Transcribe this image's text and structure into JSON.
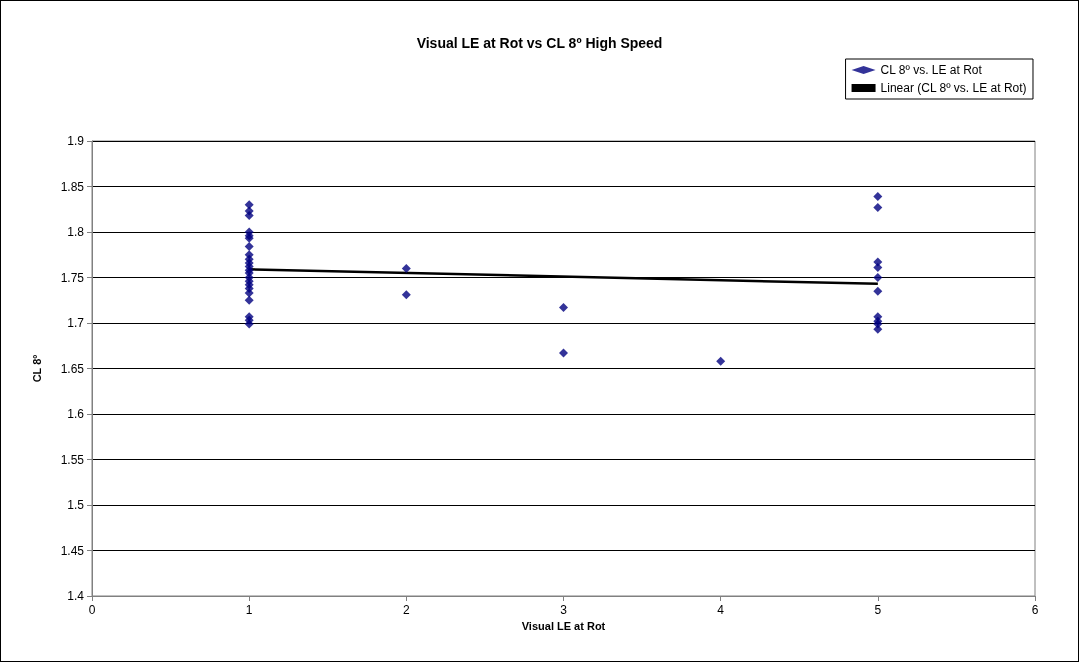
{
  "chart_data": {
    "type": "scatter",
    "title": "Visual LE at Rot vs CL 8º High Speed",
    "xlabel": "Visual LE at Rot",
    "ylabel": "CL 8º",
    "xlim": [
      0,
      6
    ],
    "xticks": [
      0,
      1,
      2,
      3,
      4,
      5,
      6
    ],
    "ylim": [
      1.4,
      1.9
    ],
    "yticks": [
      1.4,
      1.45,
      1.5,
      1.55,
      1.6,
      1.65,
      1.7,
      1.75,
      1.8,
      1.85,
      1.9
    ],
    "grid": "y",
    "legend": "top right",
    "marker": "diamond",
    "series": [
      {
        "name": "CL 8º vs. LE at Rot",
        "type": "scatter",
        "color": "#000080",
        "x": [
          1,
          1,
          1,
          1,
          1,
          1,
          1,
          1,
          1,
          1,
          1,
          1,
          1,
          1,
          1,
          1,
          1,
          1,
          1,
          1,
          1,
          1,
          2,
          2,
          3,
          3,
          4,
          5,
          5,
          5,
          5,
          5,
          5,
          5,
          5,
          5,
          5
        ],
        "values": [
          1.83,
          1.823,
          1.818,
          1.8,
          1.796,
          1.793,
          1.784,
          1.775,
          1.77,
          1.766,
          1.762,
          1.758,
          1.755,
          1.75,
          1.746,
          1.742,
          1.738,
          1.733,
          1.725,
          1.707,
          1.703,
          1.699,
          1.76,
          1.731,
          1.717,
          1.667,
          1.658,
          1.839,
          1.827,
          1.767,
          1.761,
          1.75,
          1.735,
          1.707,
          1.702,
          1.699,
          1.693
        ]
      },
      {
        "name": "Linear (CL 8º vs. LE at Rot)",
        "type": "line",
        "color": "#000000",
        "marker": "none",
        "line_style": "solid",
        "x": [
          1,
          5
        ],
        "values": [
          1.759,
          1.743
        ]
      }
    ]
  }
}
